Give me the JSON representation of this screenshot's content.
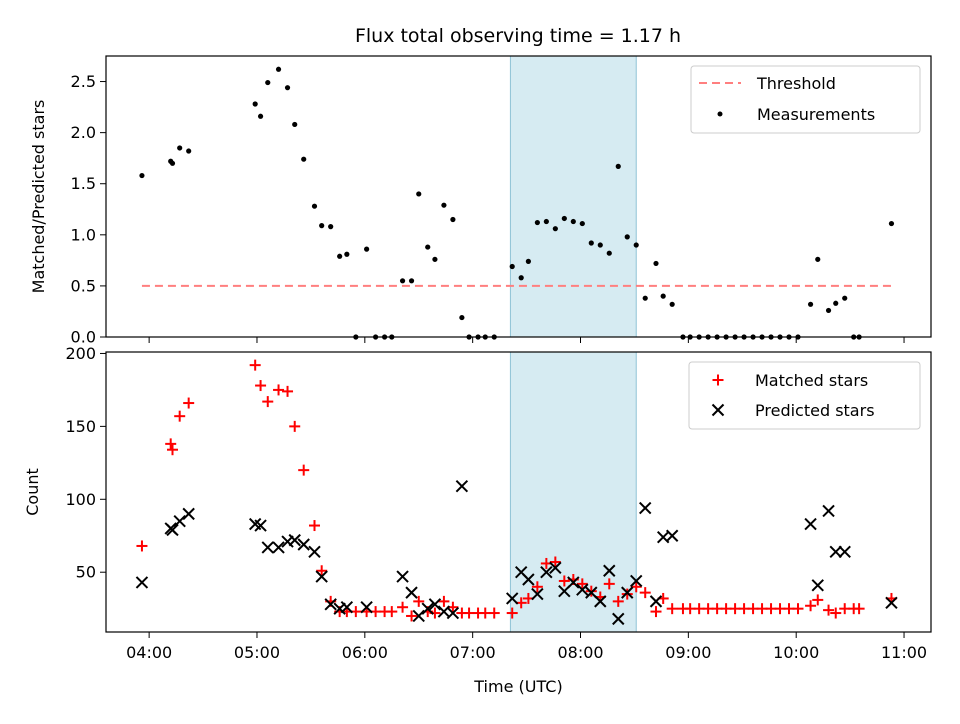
{
  "chart_data": [
    {
      "type": "scatter",
      "title": "Flux total observing time = 1.17 h",
      "xlabel": "",
      "ylabel": "Matched/Predicted stars",
      "ylim": [
        0,
        2.75
      ],
      "xlim": [
        "03:36",
        "11:15"
      ],
      "yticks": [
        "0.0",
        "0.5",
        "1.0",
        "1.5",
        "2.0",
        "2.5"
      ],
      "highlight_span": {
        "start": "07:21",
        "end": "08:31",
        "color": "#add8e6"
      },
      "legend_position": "upper right",
      "series": [
        {
          "name": "Threshold",
          "style": "dashed-line",
          "color": "#ff7f7f",
          "x": [
            "03:56",
            "10:53"
          ],
          "y": [
            0.5,
            0.5
          ]
        },
        {
          "name": "Measurements",
          "style": "dot",
          "color": "#000000",
          "points": [
            [
              "03:56",
              1.58
            ],
            [
              "04:12",
              1.72
            ],
            [
              "04:13",
              1.7
            ],
            [
              "04:17",
              1.85
            ],
            [
              "04:22",
              1.82
            ],
            [
              "04:59",
              2.28
            ],
            [
              "05:02",
              2.16
            ],
            [
              "05:06",
              2.49
            ],
            [
              "05:12",
              2.62
            ],
            [
              "05:17",
              2.44
            ],
            [
              "05:21",
              2.08
            ],
            [
              "05:26",
              1.74
            ],
            [
              "05:32",
              1.28
            ],
            [
              "05:36",
              1.09
            ],
            [
              "05:41",
              1.08
            ],
            [
              "05:46",
              0.79
            ],
            [
              "05:50",
              0.81
            ],
            [
              "05:55",
              0.0
            ],
            [
              "06:01",
              0.86
            ],
            [
              "06:06",
              0.0
            ],
            [
              "06:11",
              0.0
            ],
            [
              "06:15",
              0.0
            ],
            [
              "06:21",
              0.55
            ],
            [
              "06:26",
              0.55
            ],
            [
              "06:30",
              1.4
            ],
            [
              "06:35",
              0.88
            ],
            [
              "06:39",
              0.76
            ],
            [
              "06:44",
              1.29
            ],
            [
              "06:49",
              1.15
            ],
            [
              "06:54",
              0.19
            ],
            [
              "06:58",
              0.0
            ],
            [
              "07:03",
              0.0
            ],
            [
              "07:07",
              0.0
            ],
            [
              "07:12",
              0.0
            ],
            [
              "07:22",
              0.69
            ],
            [
              "07:27",
              0.58
            ],
            [
              "07:31",
              0.74
            ],
            [
              "07:36",
              1.12
            ],
            [
              "07:41",
              1.13
            ],
            [
              "07:46",
              1.06
            ],
            [
              "07:51",
              1.16
            ],
            [
              "07:56",
              1.13
            ],
            [
              "08:01",
              1.11
            ],
            [
              "08:06",
              0.92
            ],
            [
              "08:11",
              0.9
            ],
            [
              "08:16",
              0.82
            ],
            [
              "08:21",
              1.67
            ],
            [
              "08:26",
              0.98
            ],
            [
              "08:31",
              0.9
            ],
            [
              "08:36",
              0.38
            ],
            [
              "08:42",
              0.72
            ],
            [
              "08:46",
              0.4
            ],
            [
              "08:51",
              0.32
            ],
            [
              "08:57",
              0.0
            ],
            [
              "09:01",
              0.0
            ],
            [
              "09:06",
              0.0
            ],
            [
              "09:11",
              0.0
            ],
            [
              "09:16",
              0.0
            ],
            [
              "09:21",
              0.0
            ],
            [
              "09:26",
              0.0
            ],
            [
              "09:31",
              0.0
            ],
            [
              "09:36",
              0.0
            ],
            [
              "09:41",
              0.0
            ],
            [
              "09:46",
              0.0
            ],
            [
              "09:51",
              0.0
            ],
            [
              "09:56",
              0.0
            ],
            [
              "10:01",
              0.0
            ],
            [
              "10:08",
              0.32
            ],
            [
              "10:12",
              0.76
            ],
            [
              "10:18",
              0.26
            ],
            [
              "10:22",
              0.33
            ],
            [
              "10:27",
              0.38
            ],
            [
              "10:32",
              0.0
            ],
            [
              "10:35",
              0.0
            ],
            [
              "10:53",
              1.11
            ]
          ]
        }
      ]
    },
    {
      "type": "scatter",
      "title": "",
      "xlabel": "Time (UTC)",
      "ylabel": "Count",
      "ylim": [
        9,
        201
      ],
      "xlim": [
        "03:36",
        "11:15"
      ],
      "xticks": [
        "04:00",
        "05:00",
        "06:00",
        "07:00",
        "08:00",
        "09:00",
        "10:00",
        "11:00"
      ],
      "yticks": [
        "50",
        "100",
        "150",
        "200"
      ],
      "highlight_span": {
        "start": "07:21",
        "end": "08:31",
        "color": "#add8e6"
      },
      "legend_position": "upper right",
      "series": [
        {
          "name": "Matched stars",
          "marker": "+",
          "color": "#ff0000",
          "points": [
            [
              "03:56",
              68
            ],
            [
              "04:12",
              138
            ],
            [
              "04:13",
              134
            ],
            [
              "04:17",
              157
            ],
            [
              "04:22",
              166
            ],
            [
              "04:59",
              192
            ],
            [
              "05:02",
              178
            ],
            [
              "05:06",
              167
            ],
            [
              "05:12",
              175
            ],
            [
              "05:17",
              174
            ],
            [
              "05:21",
              150
            ],
            [
              "05:26",
              120
            ],
            [
              "05:32",
              82
            ],
            [
              "05:36",
              51
            ],
            [
              "05:41",
              30
            ],
            [
              "05:46",
              23
            ],
            [
              "05:50",
              23
            ],
            [
              "05:55",
              23
            ],
            [
              "06:01",
              23
            ],
            [
              "06:06",
              23
            ],
            [
              "06:11",
              23
            ],
            [
              "06:15",
              23
            ],
            [
              "06:21",
              26
            ],
            [
              "06:26",
              20
            ],
            [
              "06:30",
              30
            ],
            [
              "06:35",
              23
            ],
            [
              "06:39",
              22
            ],
            [
              "06:44",
              30
            ],
            [
              "06:49",
              26
            ],
            [
              "06:54",
              22
            ],
            [
              "06:58",
              22
            ],
            [
              "07:03",
              22
            ],
            [
              "07:07",
              22
            ],
            [
              "07:12",
              22
            ],
            [
              "07:22",
              22
            ],
            [
              "07:27",
              29
            ],
            [
              "07:31",
              32
            ],
            [
              "07:36",
              40
            ],
            [
              "07:41",
              56
            ],
            [
              "07:46",
              57
            ],
            [
              "07:51",
              44
            ],
            [
              "07:56",
              45
            ],
            [
              "08:01",
              42
            ],
            [
              "08:06",
              37
            ],
            [
              "08:11",
              33
            ],
            [
              "08:16",
              42
            ],
            [
              "08:21",
              30
            ],
            [
              "08:26",
              35
            ],
            [
              "08:31",
              40
            ],
            [
              "08:36",
              36
            ],
            [
              "08:42",
              23
            ],
            [
              "08:46",
              32
            ],
            [
              "08:51",
              25
            ],
            [
              "08:57",
              25
            ],
            [
              "09:01",
              25
            ],
            [
              "09:06",
              25
            ],
            [
              "09:11",
              25
            ],
            [
              "09:16",
              25
            ],
            [
              "09:21",
              25
            ],
            [
              "09:26",
              25
            ],
            [
              "09:31",
              25
            ],
            [
              "09:36",
              25
            ],
            [
              "09:41",
              25
            ],
            [
              "09:46",
              25
            ],
            [
              "09:51",
              25
            ],
            [
              "09:56",
              25
            ],
            [
              "10:01",
              25
            ],
            [
              "10:08",
              27
            ],
            [
              "10:12",
              31
            ],
            [
              "10:18",
              24
            ],
            [
              "10:22",
              22
            ],
            [
              "10:27",
              25
            ],
            [
              "10:32",
              25
            ],
            [
              "10:35",
              25
            ],
            [
              "10:53",
              32
            ]
          ]
        },
        {
          "name": "Predicted stars",
          "marker": "x",
          "color": "#000000",
          "points": [
            [
              "03:56",
              43
            ],
            [
              "04:12",
              80
            ],
            [
              "04:13",
              79
            ],
            [
              "04:17",
              85
            ],
            [
              "04:22",
              90
            ],
            [
              "04:59",
              83
            ],
            [
              "05:02",
              82
            ],
            [
              "05:06",
              67
            ],
            [
              "05:12",
              67
            ],
            [
              "05:17",
              71
            ],
            [
              "05:21",
              72
            ],
            [
              "05:26",
              69
            ],
            [
              "05:32",
              64
            ],
            [
              "05:36",
              47
            ],
            [
              "05:41",
              28
            ],
            [
              "05:46",
              25
            ],
            [
              "05:50",
              26
            ],
            [
              "06:01",
              26
            ],
            [
              "06:21",
              47
            ],
            [
              "06:26",
              36
            ],
            [
              "06:30",
              20
            ],
            [
              "06:35",
              25
            ],
            [
              "06:39",
              28
            ],
            [
              "06:44",
              23
            ],
            [
              "06:49",
              22
            ],
            [
              "06:54",
              109
            ],
            [
              "07:22",
              32
            ],
            [
              "07:27",
              50
            ],
            [
              "07:31",
              45
            ],
            [
              "07:36",
              35
            ],
            [
              "07:41",
              50
            ],
            [
              "07:46",
              53
            ],
            [
              "07:51",
              37
            ],
            [
              "07:56",
              43
            ],
            [
              "08:01",
              38
            ],
            [
              "08:06",
              36
            ],
            [
              "08:11",
              30
            ],
            [
              "08:16",
              51
            ],
            [
              "08:21",
              18
            ],
            [
              "08:26",
              36
            ],
            [
              "08:31",
              44
            ],
            [
              "08:36",
              94
            ],
            [
              "08:42",
              30
            ],
            [
              "08:46",
              74
            ],
            [
              "08:51",
              75
            ],
            [
              "10:08",
              83
            ],
            [
              "10:12",
              41
            ],
            [
              "10:18",
              92
            ],
            [
              "10:22",
              64
            ],
            [
              "10:27",
              64
            ],
            [
              "10:53",
              29
            ]
          ]
        }
      ]
    }
  ]
}
